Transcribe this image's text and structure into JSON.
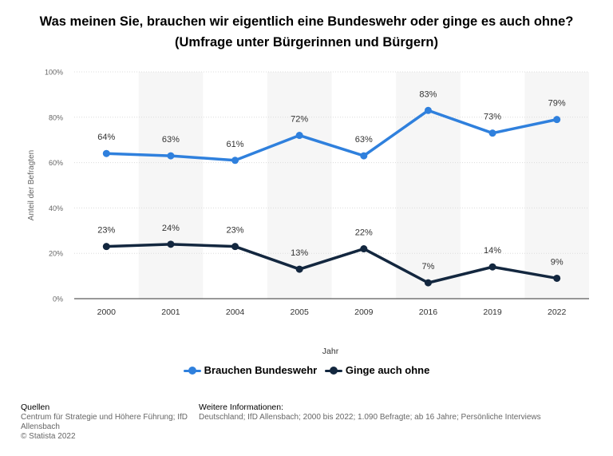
{
  "chart_data": {
    "type": "line",
    "title_line1": "Was meinen Sie, brauchen wir eigentlich eine Bundeswehr oder ginge es auch ohne?",
    "title_line2": "(Umfrage unter Bürgerinnen und Bürgern)",
    "xlabel": "Jahr",
    "ylabel": "Anteil der Befragten",
    "categories": [
      "2000",
      "2001",
      "2004",
      "2005",
      "2009",
      "2016",
      "2019",
      "2022"
    ],
    "yticks": [
      "0%",
      "20%",
      "40%",
      "60%",
      "80%",
      "100%"
    ],
    "ylim": [
      0,
      100
    ],
    "series": [
      {
        "name": "Brauchen Bundeswehr",
        "color": "#2f80dd",
        "values": [
          64,
          63,
          61,
          72,
          63,
          83,
          73,
          79
        ],
        "labels": [
          "64%",
          "63%",
          "61%",
          "72%",
          "63%",
          "83%",
          "73%",
          "79%"
        ]
      },
      {
        "name": "Ginge auch ohne",
        "color": "#13273f",
        "values": [
          23,
          24,
          23,
          13,
          22,
          7,
          14,
          9
        ],
        "labels": [
          "23%",
          "24%",
          "23%",
          "13%",
          "22%",
          "7%",
          "14%",
          "9%"
        ]
      }
    ],
    "grid": true,
    "legend": "bottom-center"
  },
  "footer": {
    "sources_heading": "Quellen",
    "sources_line1": "Centrum für Strategie und Höhere Führung; IfD",
    "sources_line2": "Allensbach",
    "sources_line3": "© Statista 2022",
    "info_heading": "Weitere Informationen:",
    "info_text": "Deutschland; IfD Allensbach; 2000 bis 2022; 1.090 Befragte; ab 16 Jahre; Persönliche Interviews"
  }
}
